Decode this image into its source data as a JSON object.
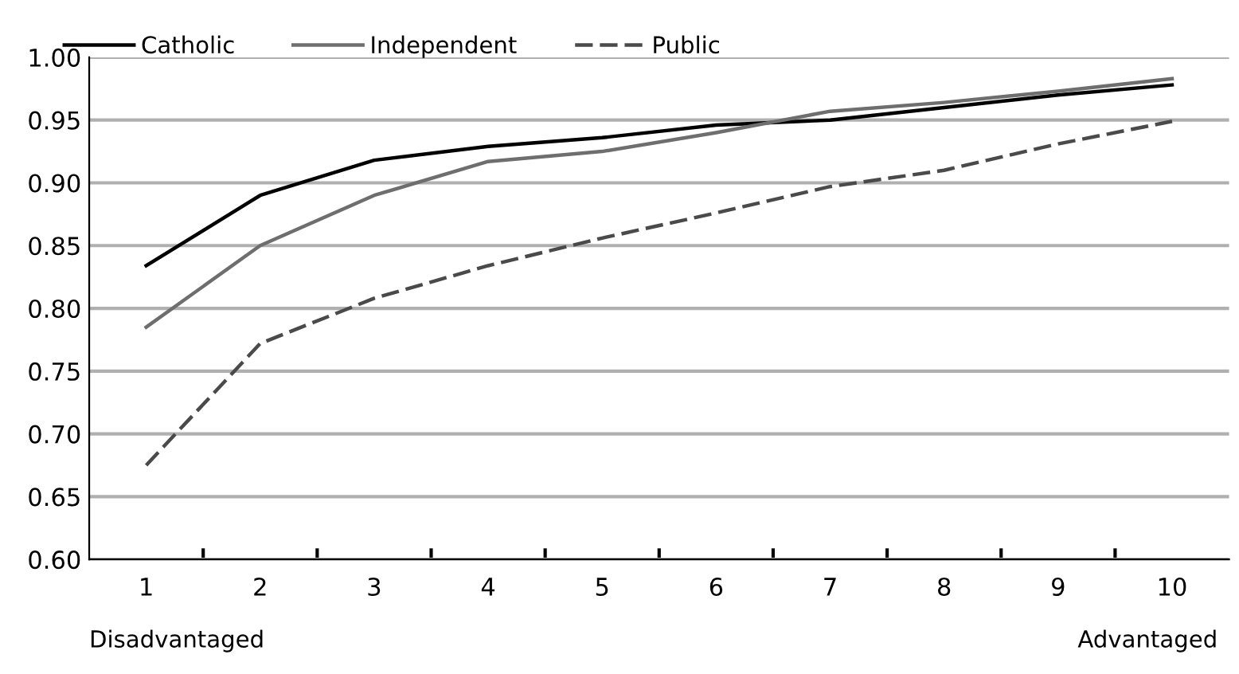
{
  "chart_data": {
    "type": "line",
    "categories": [
      "1",
      "2",
      "3",
      "4",
      "5",
      "6",
      "7",
      "8",
      "9",
      "10"
    ],
    "series": [
      {
        "name": "Catholic",
        "color": "#000000",
        "line_style": "solid",
        "values": [
          0.834,
          0.89,
          0.918,
          0.929,
          0.936,
          0.946,
          0.95,
          0.96,
          0.97,
          0.978
        ]
      },
      {
        "name": "Independent",
        "color": "#6e6e6e",
        "line_style": "solid",
        "values": [
          0.785,
          0.85,
          0.89,
          0.917,
          0.925,
          0.94,
          0.957,
          0.964,
          0.973,
          0.983
        ]
      },
      {
        "name": "Public",
        "color": "#4a4a4a",
        "line_style": "dashed",
        "values": [
          0.675,
          0.772,
          0.808,
          0.834,
          0.856,
          0.876,
          0.897,
          0.91,
          0.931,
          0.949
        ]
      }
    ],
    "ylim": [
      0.6,
      1.0
    ],
    "yticks": [
      {
        "value": 0.6,
        "label": "0.60"
      },
      {
        "value": 0.65,
        "label": "0.65"
      },
      {
        "value": 0.7,
        "label": "0.70"
      },
      {
        "value": 0.75,
        "label": "0.75"
      },
      {
        "value": 0.8,
        "label": "0.80"
      },
      {
        "value": 0.85,
        "label": "0.85"
      },
      {
        "value": 0.9,
        "label": "0.90"
      },
      {
        "value": 0.95,
        "label": "0.95"
      },
      {
        "value": 1.0,
        "label": "1.00"
      }
    ],
    "grid": "y",
    "legend": "top",
    "marker": "none",
    "annotations": [
      "Disadvantaged",
      "Advantaged"
    ]
  }
}
